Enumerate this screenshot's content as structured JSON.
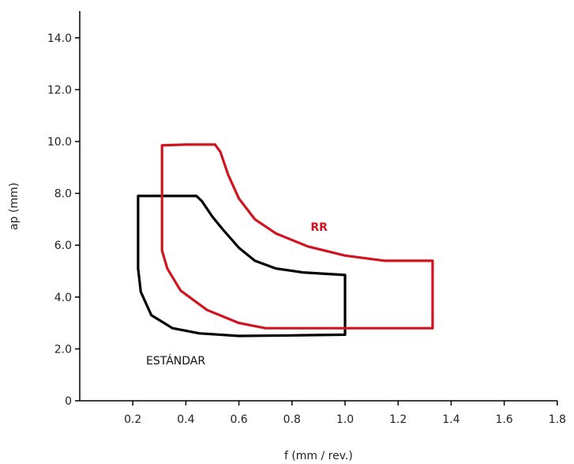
{
  "chart_data": {
    "type": "line",
    "xlabel": "f (mm / rev.)",
    "ylabel": "ap (mm)",
    "xlim": [
      0,
      1.8
    ],
    "ylim": [
      0,
      15
    ],
    "x_ticks": [
      "0.2",
      "0.4",
      "0.6",
      "0.8",
      "1.0",
      "1.2",
      "1.4",
      "1.6",
      "1.8"
    ],
    "y_ticks": [
      "0",
      "2.0",
      "4.0",
      "6.0",
      "8.0",
      "10.0",
      "12.0",
      "14.0"
    ],
    "grid": false,
    "series": [
      {
        "name": "ESTÁNDAR",
        "color": "#000000",
        "label_bold": false,
        "points": [
          [
            0.22,
            7.9
          ],
          [
            0.44,
            7.9
          ],
          [
            0.46,
            7.7
          ],
          [
            0.5,
            7.1
          ],
          [
            0.54,
            6.6
          ],
          [
            0.6,
            5.9
          ],
          [
            0.66,
            5.4
          ],
          [
            0.74,
            5.1
          ],
          [
            0.84,
            4.95
          ],
          [
            1.0,
            4.85
          ],
          [
            1.0,
            2.55
          ],
          [
            0.8,
            2.52
          ],
          [
            0.6,
            2.5
          ],
          [
            0.45,
            2.6
          ],
          [
            0.35,
            2.8
          ],
          [
            0.27,
            3.3
          ],
          [
            0.23,
            4.2
          ],
          [
            0.22,
            5.1
          ],
          [
            0.22,
            7.9
          ]
        ]
      },
      {
        "name": "RR",
        "color": "#d0141f",
        "label_bold": true,
        "points": [
          [
            0.31,
            9.85
          ],
          [
            0.4,
            9.88
          ],
          [
            0.51,
            9.88
          ],
          [
            0.53,
            9.6
          ],
          [
            0.56,
            8.7
          ],
          [
            0.6,
            7.8
          ],
          [
            0.66,
            7.0
          ],
          [
            0.74,
            6.45
          ],
          [
            0.86,
            5.95
          ],
          [
            1.0,
            5.6
          ],
          [
            1.15,
            5.4
          ],
          [
            1.33,
            5.4
          ],
          [
            1.33,
            2.8
          ],
          [
            1.0,
            2.8
          ],
          [
            0.7,
            2.8
          ],
          [
            0.6,
            3.0
          ],
          [
            0.48,
            3.5
          ],
          [
            0.38,
            4.25
          ],
          [
            0.33,
            5.1
          ],
          [
            0.31,
            5.8
          ],
          [
            0.31,
            9.85
          ]
        ]
      }
    ],
    "annotations": [
      {
        "text": "RR",
        "x": 0.87,
        "y": 6.55,
        "series": "RR"
      },
      {
        "text": "ESTÁNDAR",
        "x": 0.25,
        "y": 1.4,
        "series": "ESTÁNDAR"
      }
    ]
  }
}
